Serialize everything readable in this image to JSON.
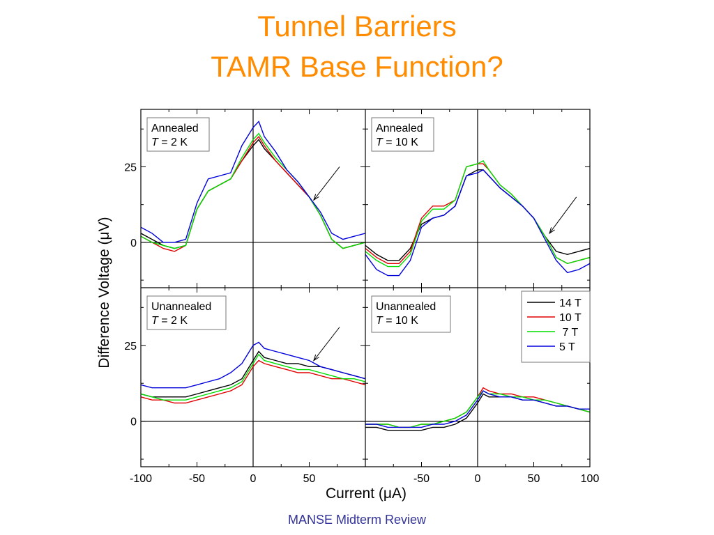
{
  "slide": {
    "title_line1": "Tunnel Barriers",
    "title_line2": "TAMR Base Function?",
    "footer": "MANSE Midterm Review",
    "title_color": "#ff8c00",
    "footer_color": "#333399"
  },
  "chart_data": {
    "type": "line",
    "ylabel": "Difference Voltage (μV)",
    "xlabel": "Current (μA)",
    "xlim_left": [
      -100,
      100
    ],
    "xlim_right": [
      -100,
      100
    ],
    "ylim": [
      -15,
      44
    ],
    "x_ticks_left": [
      -100,
      -50,
      0,
      50
    ],
    "x_ticks_right": [
      -50,
      0,
      50,
      100
    ],
    "y_ticks": [
      0,
      25
    ],
    "legend": {
      "entries": [
        "14 T",
        "10 T",
        " 7 T",
        "5 T"
      ],
      "colors": [
        "#000000",
        "#e00000",
        "#00dd00",
        "#0000dd"
      ],
      "placement": "bottom-right panel, top-right"
    },
    "panels": [
      {
        "id": "annealed-2k",
        "label_line1": "Annealed",
        "label_var": "T",
        "label_rest": " = 2 K",
        "arrow": {
          "from": [
            77,
            25
          ],
          "to": [
            54,
            14
          ]
        },
        "series": [
          {
            "color": "#000000",
            "x": [
              -100,
              -90,
              -80,
              -70,
              -60,
              -50,
              -40,
              -30,
              -20,
              -10,
              0,
              5,
              10,
              20,
              30,
              40,
              50,
              60,
              70,
              80,
              90,
              100
            ],
            "y": [
              3,
              1,
              -1,
              -2,
              -1,
              11,
              17,
              19,
              21,
              27,
              32,
              34,
              31,
              27,
              23,
              19,
              15,
              9,
              1,
              -2,
              -1,
              0
            ]
          },
          {
            "color": "#e00000",
            "x": [
              -100,
              -90,
              -80,
              -70,
              -60,
              -50,
              -40,
              -30,
              -20,
              -10,
              0,
              5,
              10,
              20,
              30,
              40,
              50,
              60,
              70,
              80,
              90,
              100
            ],
            "y": [
              2,
              0,
              -2,
              -3,
              -1,
              11,
              17,
              19,
              21,
              27,
              33,
              35,
              32,
              27,
              23,
              19,
              15,
              9,
              1,
              -2,
              -1,
              0
            ]
          },
          {
            "color": "#00dd00",
            "x": [
              -100,
              -90,
              -80,
              -70,
              -60,
              -50,
              -40,
              -30,
              -20,
              -10,
              0,
              5,
              10,
              20,
              30,
              40,
              50,
              60,
              70,
              80,
              90,
              100
            ],
            "y": [
              2,
              0,
              -1,
              -2,
              -1,
              11,
              17,
              19,
              21,
              28,
              34,
              36,
              33,
              28,
              24,
              20,
              15,
              9,
              1,
              -2,
              -1,
              0
            ]
          },
          {
            "color": "#0000dd",
            "x": [
              -100,
              -90,
              -80,
              -70,
              -60,
              -50,
              -40,
              -30,
              -20,
              -10,
              0,
              5,
              10,
              20,
              30,
              40,
              50,
              60,
              70,
              80,
              90,
              100
            ],
            "y": [
              5,
              3,
              0,
              0,
              1,
              13,
              21,
              22,
              23,
              32,
              38,
              40,
              35,
              30,
              24,
              20,
              15,
              10,
              3,
              1,
              2,
              3
            ]
          }
        ]
      },
      {
        "id": "annealed-10k",
        "label_line1": "Annealed",
        "label_var": "T",
        "label_rest": " = 10 K",
        "arrow": {
          "from": [
            88,
            15
          ],
          "to": [
            64,
            3
          ]
        },
        "series": [
          {
            "color": "#000000",
            "x": [
              -100,
              -90,
              -80,
              -70,
              -60,
              -50,
              -40,
              -30,
              -20,
              -10,
              0,
              5,
              10,
              20,
              30,
              40,
              50,
              60,
              70,
              80,
              90,
              100
            ],
            "y": [
              -1,
              -4,
              -6,
              -6,
              -2,
              6,
              8,
              9,
              12,
              22,
              24,
              24,
              22,
              18,
              15,
              12,
              8,
              2,
              -3,
              -4,
              -3,
              -2
            ]
          },
          {
            "color": "#e00000",
            "x": [
              -100,
              -90,
              -80,
              -70,
              -60,
              -50,
              -40,
              -30,
              -20,
              -10,
              0,
              5,
              10,
              20,
              30,
              40,
              50,
              60,
              70,
              80,
              90,
              100
            ],
            "y": [
              -2,
              -5,
              -7,
              -7,
              -3,
              8,
              12,
              12,
              14,
              25,
              26,
              26,
              24,
              19,
              16,
              12,
              8,
              2,
              -5,
              -7,
              -6,
              -5
            ]
          },
          {
            "color": "#00dd00",
            "x": [
              -100,
              -90,
              -80,
              -70,
              -60,
              -50,
              -40,
              -30,
              -20,
              -10,
              0,
              5,
              10,
              20,
              30,
              40,
              50,
              60,
              70,
              80,
              90,
              100
            ],
            "y": [
              -3,
              -6,
              -8,
              -8,
              -4,
              7,
              11,
              11,
              14,
              25,
              26,
              27,
              24,
              19,
              16,
              12,
              8,
              2,
              -5,
              -7,
              -6,
              -5
            ]
          },
          {
            "color": "#0000dd",
            "x": [
              -100,
              -90,
              -80,
              -70,
              -60,
              -50,
              -40,
              -30,
              -20,
              -10,
              0,
              5,
              10,
              20,
              30,
              40,
              50,
              60,
              70,
              80,
              90,
              100
            ],
            "y": [
              -4,
              -9,
              -11,
              -11,
              -6,
              5,
              8,
              9,
              12,
              22,
              23,
              24,
              22,
              18,
              15,
              12,
              8,
              1,
              -6,
              -10,
              -9,
              -7
            ]
          }
        ]
      },
      {
        "id": "unannealed-2k",
        "label_line1": "Unannealed",
        "label_var": "T",
        "label_rest": " = 2 K",
        "arrow": {
          "from": [
            77,
            31
          ],
          "to": [
            54,
            20
          ]
        },
        "series": [
          {
            "color": "#000000",
            "x": [
              -100,
              -90,
              -80,
              -70,
              -60,
              -50,
              -40,
              -30,
              -20,
              -10,
              0,
              5,
              10,
              20,
              30,
              40,
              50,
              60,
              70,
              80,
              90,
              100
            ],
            "y": [
              9,
              8,
              8,
              8,
              8,
              9,
              10,
              11,
              12,
              14,
              20,
              23,
              21,
              20,
              19,
              19,
              18,
              18,
              17,
              16,
              15,
              14
            ]
          },
          {
            "color": "#e00000",
            "x": [
              -100,
              -90,
              -80,
              -70,
              -60,
              -50,
              -40,
              -30,
              -20,
              -10,
              0,
              5,
              10,
              20,
              30,
              40,
              50,
              60,
              70,
              80,
              90,
              100
            ],
            "y": [
              8,
              7,
              7,
              6,
              6,
              7,
              8,
              9,
              10,
              12,
              18,
              20,
              19,
              18,
              17,
              16,
              16,
              15,
              14,
              14,
              13,
              12
            ]
          },
          {
            "color": "#00dd00",
            "x": [
              -100,
              -90,
              -80,
              -70,
              -60,
              -50,
              -40,
              -30,
              -20,
              -10,
              0,
              5,
              10,
              20,
              30,
              40,
              50,
              60,
              70,
              80,
              90,
              100
            ],
            "y": [
              9,
              8,
              7,
              7,
              7,
              8,
              9,
              10,
              11,
              13,
              19,
              22,
              20,
              19,
              18,
              17,
              17,
              16,
              15,
              14,
              14,
              13
            ]
          },
          {
            "color": "#0000dd",
            "x": [
              -100,
              -90,
              -80,
              -70,
              -60,
              -50,
              -40,
              -30,
              -20,
              -10,
              0,
              5,
              10,
              20,
              30,
              40,
              50,
              60,
              70,
              80,
              90,
              100
            ],
            "y": [
              12,
              11,
              11,
              11,
              11,
              12,
              13,
              14,
              16,
              19,
              25,
              26,
              24,
              23,
              22,
              21,
              20,
              18,
              17,
              16,
              15,
              14
            ]
          }
        ]
      },
      {
        "id": "unannealed-10k",
        "label_line1": "Unannealed",
        "label_var": "T",
        "label_rest": " = 10 K",
        "arrow": null,
        "series": [
          {
            "color": "#000000",
            "x": [
              -100,
              -90,
              -80,
              -70,
              -60,
              -50,
              -40,
              -30,
              -20,
              -10,
              0,
              5,
              10,
              20,
              30,
              40,
              50,
              60,
              70,
              80,
              90,
              100
            ],
            "y": [
              -2,
              -2,
              -3,
              -3,
              -3,
              -3,
              -2,
              -2,
              -1,
              1,
              6,
              9,
              8,
              8,
              8,
              7,
              7,
              6,
              5,
              5,
              4,
              3
            ]
          },
          {
            "color": "#e00000",
            "x": [
              -100,
              -90,
              -80,
              -70,
              -60,
              -50,
              -40,
              -30,
              -20,
              -10,
              0,
              5,
              10,
              20,
              30,
              40,
              50,
              60,
              70,
              80,
              90,
              100
            ],
            "y": [
              -1,
              -1,
              -1,
              -2,
              -2,
              -1,
              -1,
              0,
              1,
              3,
              8,
              11,
              10,
              9,
              9,
              8,
              8,
              7,
              6,
              5,
              4,
              3
            ]
          },
          {
            "color": "#00dd00",
            "x": [
              -100,
              -90,
              -80,
              -70,
              -60,
              -50,
              -40,
              -30,
              -20,
              -10,
              0,
              5,
              10,
              20,
              30,
              40,
              50,
              60,
              70,
              80,
              90,
              100
            ],
            "y": [
              -1,
              -1,
              -1,
              -2,
              -2,
              -1,
              -1,
              0,
              1,
              3,
              8,
              10,
              9,
              9,
              8,
              8,
              7,
              7,
              6,
              5,
              4,
              3
            ]
          },
          {
            "color": "#0000dd",
            "x": [
              -100,
              -90,
              -80,
              -70,
              -60,
              -50,
              -40,
              -30,
              -20,
              -10,
              0,
              5,
              10,
              20,
              30,
              40,
              50,
              60,
              70,
              80,
              90,
              100
            ],
            "y": [
              -1,
              -1,
              -2,
              -2,
              -2,
              -2,
              -1,
              -1,
              0,
              2,
              7,
              10,
              9,
              8,
              8,
              7,
              7,
              6,
              5,
              5,
              4,
              4
            ]
          }
        ]
      }
    ]
  }
}
